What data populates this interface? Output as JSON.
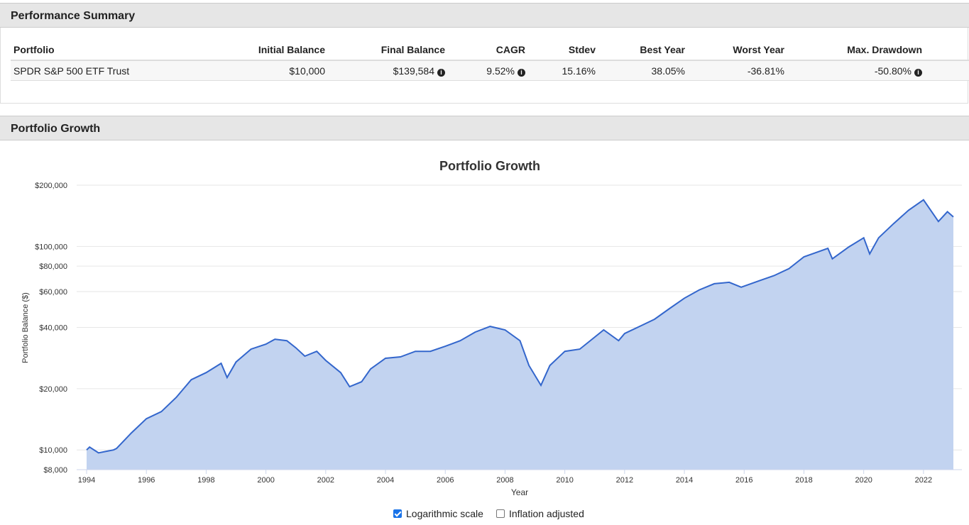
{
  "summary": {
    "title": "Performance Summary",
    "table": {
      "headers": [
        "Portfolio",
        "Initial Balance",
        "Final Balance",
        "CAGR",
        "Stdev",
        "Best Year",
        "Worst Year",
        "Max. Drawdown"
      ],
      "rows": [
        [
          "SPDR S&P 500 ETF Trust",
          "$10,000",
          "$139,584",
          "9.52%",
          "15.16%",
          "38.05%",
          "-36.81%",
          "-50.80%"
        ]
      ]
    }
  },
  "growth": {
    "title": "Portfolio Growth",
    "options": [
      {
        "label": "Logarithmic scale",
        "checked": true
      },
      {
        "label": "Inflation adjusted",
        "checked": false
      }
    ]
  },
  "chart_data": {
    "type": "area",
    "title": "Portfolio Growth",
    "x_label": "Year",
    "y_label": "Portfolio Balance ($)",
    "log_scale": true,
    "grid": true,
    "line_color": "#3366cc",
    "fill_color": "#c2d3f0",
    "x": [
      1994.0,
      1994.1,
      1994.4,
      1994.9,
      1995.0,
      1995.5,
      1996.0,
      1996.5,
      1997.0,
      1997.5,
      1998.0,
      1998.5,
      1998.7,
      1999.0,
      1999.5,
      2000.0,
      2000.3,
      2000.7,
      2001.0,
      2001.3,
      2001.7,
      2002.0,
      2002.5,
      2002.8,
      2003.2,
      2003.5,
      2004.0,
      2004.5,
      2005.0,
      2005.5,
      2006.0,
      2006.5,
      2007.0,
      2007.5,
      2008.0,
      2008.5,
      2008.8,
      2009.2,
      2009.5,
      2010.0,
      2010.5,
      2011.0,
      2011.3,
      2011.8,
      2012.0,
      2012.5,
      2013.0,
      2013.5,
      2014.0,
      2014.5,
      2015.0,
      2015.5,
      2015.9,
      2016.5,
      2017.0,
      2017.5,
      2018.0,
      2018.8,
      2018.95,
      2019.5,
      2020.0,
      2020.2,
      2020.5,
      2021.0,
      2021.5,
      2022.0,
      2022.5,
      2022.8,
      2023.0
    ],
    "series": [
      {
        "color": "#3366cc",
        "values": [
          10000,
          10330,
          9680,
          10000,
          10160,
          12130,
          14240,
          15430,
          18120,
          22130,
          23990,
          26640,
          22700,
          27060,
          31280,
          33090,
          35000,
          34430,
          31780,
          28890,
          30510,
          27540,
          23990,
          20460,
          21630,
          24990,
          28200,
          28670,
          30510,
          30510,
          32300,
          34430,
          37930,
          40440,
          38900,
          34430,
          26020,
          20780,
          26020,
          30510,
          31280,
          35860,
          38900,
          34430,
          37330,
          40440,
          43870,
          49480,
          55680,
          61180,
          65580,
          66640,
          63070,
          67800,
          71860,
          77810,
          88940,
          97880,
          86900,
          99420,
          110280,
          91880,
          110280,
          129440,
          150500,
          169390,
          132570,
          148100,
          139584
        ]
      }
    ],
    "xlim": [
      1994,
      2023
    ],
    "ylim": [
      8000,
      200000
    ],
    "xticks": [
      1994,
      1996,
      1998,
      2000,
      2002,
      2004,
      2006,
      2008,
      2010,
      2012,
      2014,
      2016,
      2018,
      2020,
      2022
    ],
    "yticks": [
      {
        "value": 8000,
        "label": "$8,000"
      },
      {
        "value": 10000,
        "label": "$10,000"
      },
      {
        "value": 20000,
        "label": "$20,000"
      },
      {
        "value": 40000,
        "label": "$40,000"
      },
      {
        "value": 60000,
        "label": "$60,000"
      },
      {
        "value": 80000,
        "label": "$80,000"
      },
      {
        "value": 100000,
        "label": "$100,000"
      },
      {
        "value": 200000,
        "label": "$200,000"
      }
    ]
  }
}
